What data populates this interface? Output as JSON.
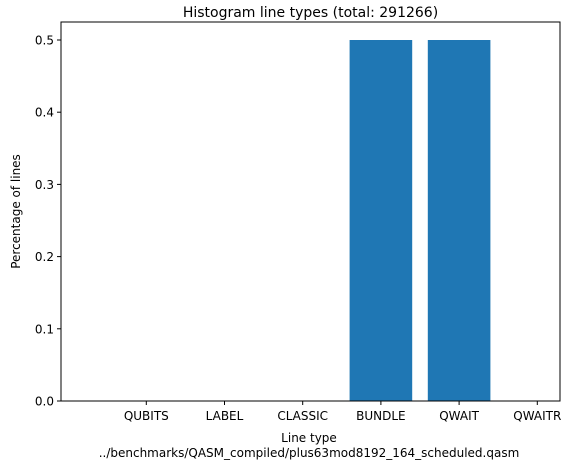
{
  "chart_data": {
    "type": "bar",
    "title": "Histogram line types (total: 291266)",
    "xlabel": "Line type",
    "subtitle": "../benchmarks/QASM_compiled/plus63mod8192_164_scheduled.qasm",
    "ylabel": "Percentage of lines",
    "categories": [
      "QUBITS",
      "LABEL",
      "CLASSIC",
      "BUNDLE",
      "QWAIT",
      "QWAITR"
    ],
    "values": [
      0.0,
      0.0,
      0.0,
      0.5,
      0.5,
      0.0
    ],
    "ylim": [
      0,
      0.525
    ],
    "yticks": [
      "0.0",
      "0.1",
      "0.2",
      "0.3",
      "0.4",
      "0.5"
    ],
    "grid": false,
    "bar_color": "#1f77b4"
  }
}
